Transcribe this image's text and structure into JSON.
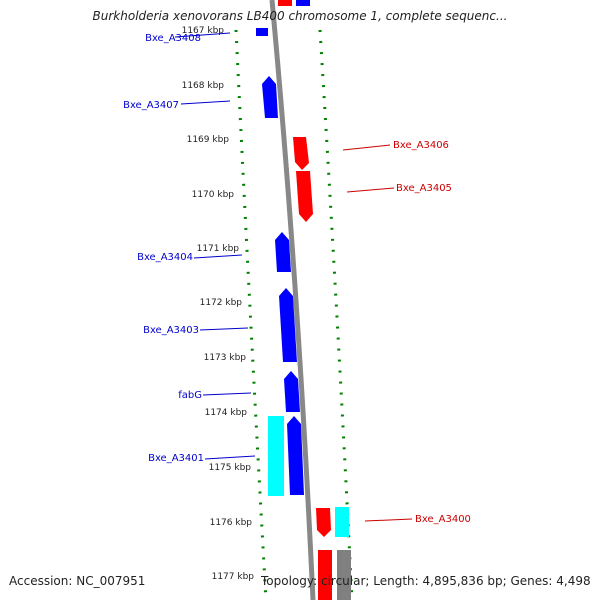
{
  "title": "Burkholderia xenovorans LB400 chromosome 1, complete sequenc...",
  "accession": "Accession: NC_007951",
  "topology": "Topology: circular; Length: 4,895,836 bp; Genes: 4,498",
  "colors": {
    "forward_cds": "#0000ff",
    "reverse_cds": "#ff0000",
    "rna": "#00ffff",
    "other": "#808080",
    "gc_ticks": "#008000",
    "backbone": "#888888",
    "forward_label": "#0000cc",
    "reverse_label": "#cc0000"
  },
  "ruler_labels": [
    "1167 kbp",
    "1168 kbp",
    "1169 kbp",
    "1170 kbp",
    "1171 kbp",
    "1172 kbp",
    "1173 kbp",
    "1174 kbp",
    "1175 kbp",
    "1176 kbp",
    "1177 kbp"
  ],
  "gene_labels": {
    "bxe_a3408": "Bxe_A3408",
    "bxe_a3407": "Bxe_A3407",
    "bxe_a3406": "Bxe_A3406",
    "bxe_a3405": "Bxe_A3405",
    "bxe_a3404": "Bxe_A3404",
    "bxe_a3403": "Bxe_A3403",
    "fabg": "fabG",
    "bxe_a3401": "Bxe_A3401",
    "bxe_a3400": "Bxe_A3400"
  }
}
